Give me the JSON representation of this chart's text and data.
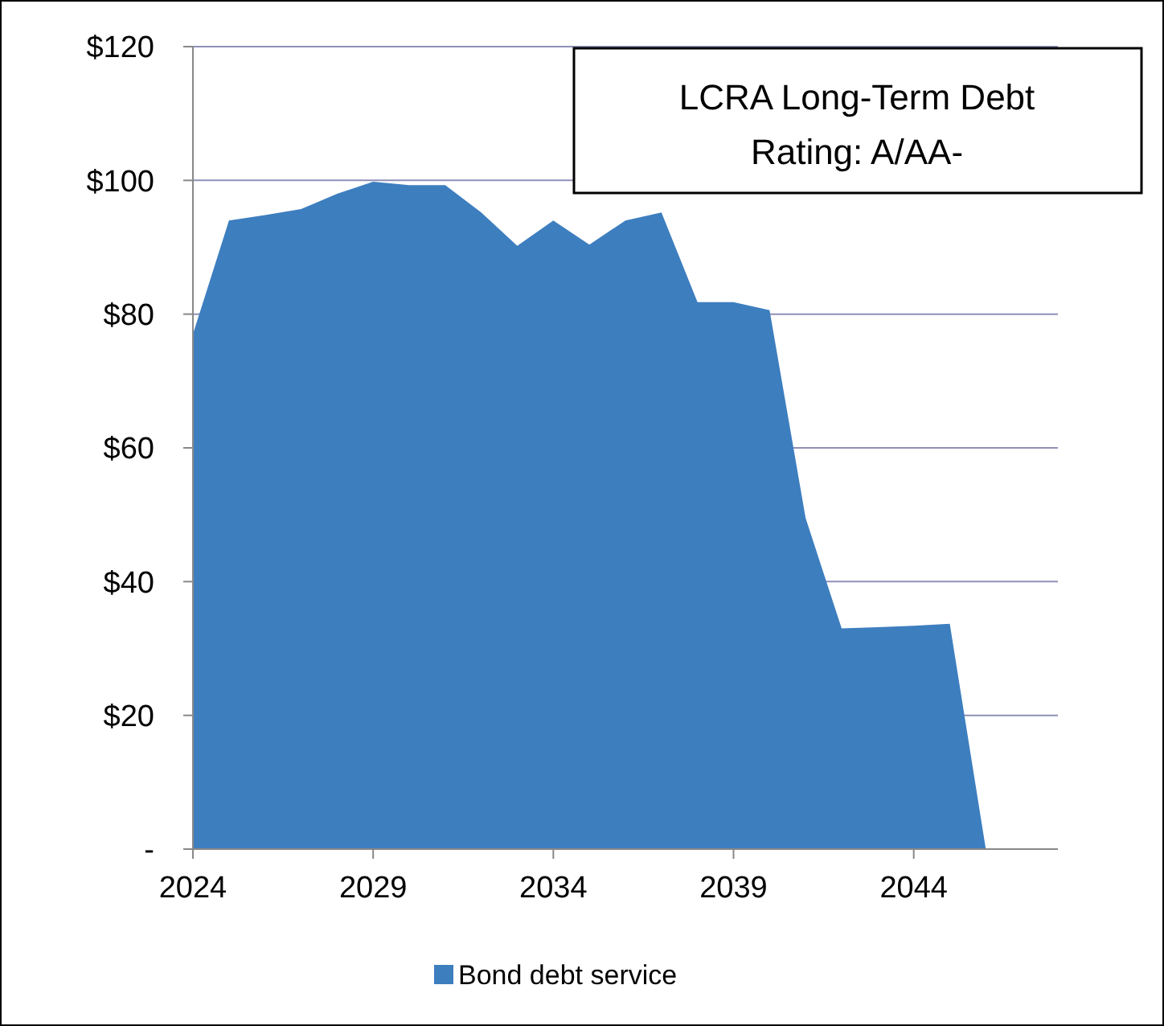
{
  "chart_data": {
    "type": "area",
    "x": [
      2024,
      2025,
      2026,
      2027,
      2028,
      2029,
      2030,
      2031,
      2032,
      2033,
      2034,
      2035,
      2036,
      2037,
      2038,
      2039,
      2040,
      2041,
      2042,
      2043,
      2044,
      2045,
      2046
    ],
    "series": [
      {
        "name": "Bond debt service",
        "color": "#3d7ebf",
        "values": [
          77,
          94,
          94.8,
          95.7,
          98,
          99.8,
          99.3,
          99.3,
          95.2,
          90.2,
          94,
          90.4,
          94,
          95.2,
          81.8,
          81.8,
          80.6,
          49.5,
          33,
          33.2,
          33.4,
          33.7,
          0
        ]
      }
    ],
    "xlim": [
      2024,
      2048
    ],
    "xticks": [
      2024,
      2029,
      2034,
      2039,
      2044
    ],
    "ylim": [
      0,
      120
    ],
    "yticks": [
      {
        "value": 0,
        "label": "-"
      },
      {
        "value": 20,
        "label": "$20"
      },
      {
        "value": 40,
        "label": "$40"
      },
      {
        "value": 60,
        "label": "$60"
      },
      {
        "value": 80,
        "label": "$80"
      },
      {
        "value": 100,
        "label": "$100"
      },
      {
        "value": 120,
        "label": "$120"
      }
    ],
    "grid": "y",
    "legend": "bottom",
    "annotations": [
      "LCRA Long-Term Debt\nRating: A/AA-"
    ]
  }
}
